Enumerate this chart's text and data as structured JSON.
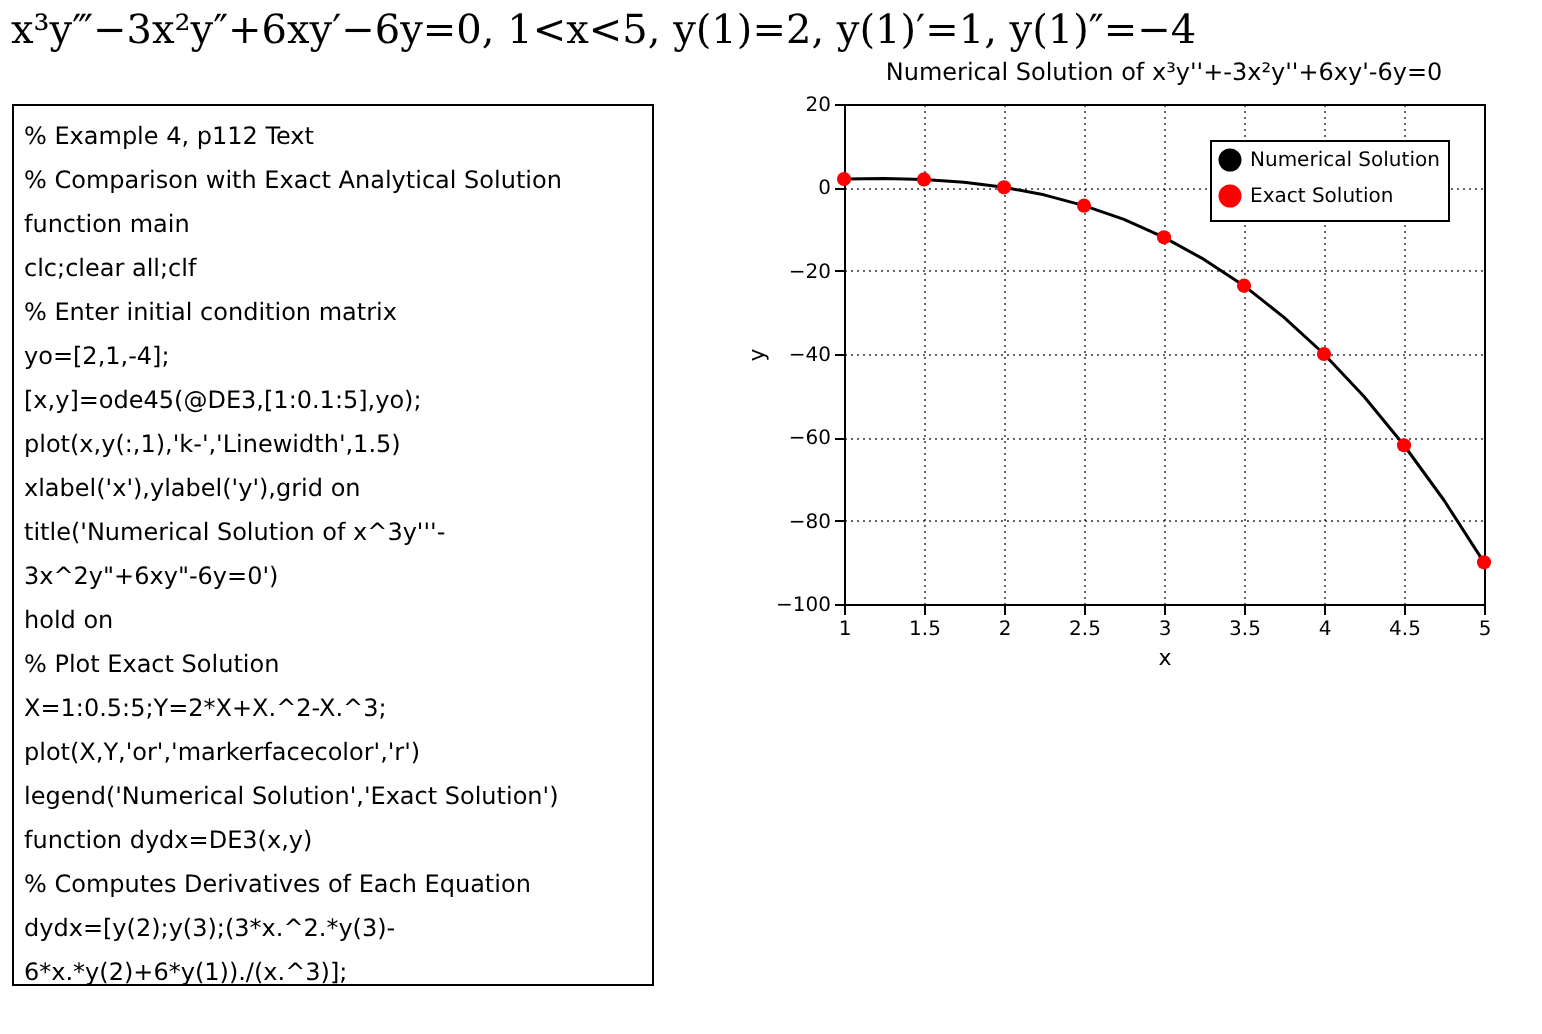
{
  "chart_data": {
    "type": "line",
    "subtitle": "x³y‴−3x²y″+6xy′−6y=0,  1<x<5,  y(1)=2,  y(1)′=1,  y(1)″=−4",
    "title": "Numerical Solution of x³y''+-3x²y''+6xy'-6y=0",
    "xlabel": "x",
    "ylabel": "y",
    "series": [
      {
        "name": "Numerical Solution",
        "color": "#000000",
        "marker": "none",
        "line_style": "solid",
        "x": [
          1,
          1.25,
          1.5,
          1.75,
          2,
          2.25,
          2.5,
          2.75,
          3,
          3.25,
          3.5,
          3.75,
          4,
          4.25,
          4.5,
          4.75,
          5
        ],
        "values": [
          2,
          2.1,
          1.9,
          1.2,
          0,
          -1.8,
          -4.4,
          -7.7,
          -12,
          -17.3,
          -23.6,
          -31.2,
          -40,
          -50.2,
          -61.9,
          -75.1,
          -90
        ]
      },
      {
        "name": "Exact Solution",
        "type": "scatter",
        "color": "#ff0000",
        "marker": "circle",
        "x": [
          1,
          1.5,
          2,
          2.5,
          3,
          3.5,
          4,
          4.5,
          5
        ],
        "values": [
          2,
          1.9,
          0,
          -4.4,
          -12,
          -23.6,
          -40,
          -61.9,
          -90
        ]
      }
    ],
    "xlim": [
      1,
      5
    ],
    "xticks": [
      1,
      1.5,
      2,
      2.5,
      3,
      3.5,
      4,
      4.5,
      5
    ],
    "ylim": [
      -100,
      20
    ],
    "yticks": [
      -100,
      -80,
      -60,
      -40,
      -20,
      0,
      20
    ],
    "grid": true,
    "legend": "top right",
    "annotations": [
      "% Example 4, p112 Text",
      "% Comparison with Exact Analytical Solution",
      "function main",
      "clc;clear all;clf",
      "% Enter initial condition matrix",
      "yo=[2,1,-4];",
      "[x,y]=ode45(@DE3,[1:0.1:5],yo);",
      "plot(x,y(:,1),'k-','Linewidth',1.5)",
      "xlabel('x'),ylabel('y'),grid on",
      "title('Numerical Solution of x^3y'''-",
      "3x^2y\"+6xy\"-6y=0')",
      "hold on",
      "% Plot Exact Solution",
      "X=1:0.5:5;Y=2*X+X.^2-X.^3;",
      "plot(X,Y,'or','markerfacecolor','r')",
      "legend('Numerical Solution','Exact Solution')",
      "function dydx=DE3(x,y)",
      "% Computes Derivatives of Each Equation",
      "dydx=[y(2);y(3);(3*x.^2.*y(3)-",
      "6*x.*y(2)+6*y(1))./(x.^3)];"
    ]
  }
}
